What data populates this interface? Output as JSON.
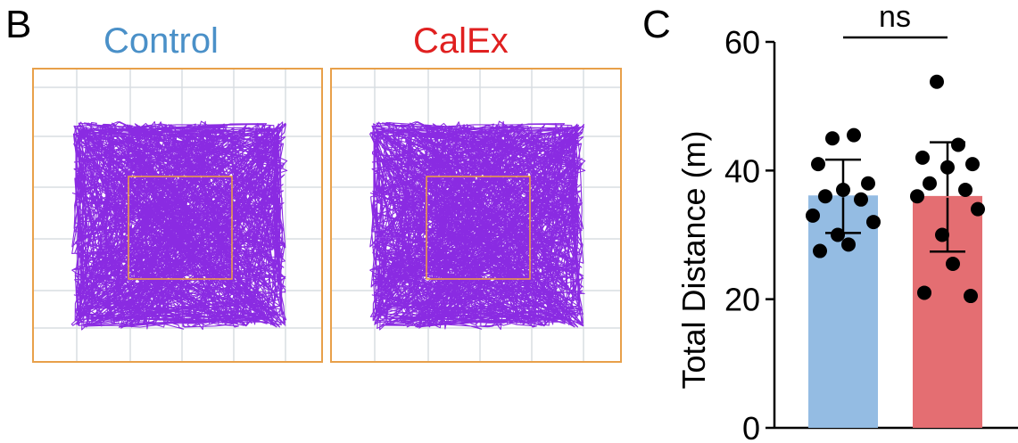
{
  "panel_b": {
    "letter": "B",
    "groups": [
      {
        "label": "Control",
        "color": "#4a90c8"
      },
      {
        "label": "CalEx",
        "color": "#e02020"
      }
    ],
    "arena_border_color": "#e8a04a",
    "center_zone_color": "#f0a040",
    "track_color": "#8a2be2",
    "grid_color": "#d8dde2"
  },
  "panel_c": {
    "letter": "C"
  },
  "chart_data": {
    "type": "bar",
    "ylabel": "Total Distance (m)",
    "xlabel": "",
    "ylim": [
      0,
      60
    ],
    "yticks": [
      0,
      20,
      40,
      60
    ],
    "categories": [
      "",
      ""
    ],
    "bar_colors": [
      "#94bce3",
      "#e46e72"
    ],
    "means": [
      36.0,
      35.9
    ],
    "sd": [
      5.7,
      8.5
    ],
    "points": [
      [
        45.0,
        45.5,
        41.0,
        38.0,
        37.0,
        36.0,
        35.5,
        33.0,
        32.0,
        30.0,
        28.5,
        27.5
      ],
      [
        53.8,
        44.0,
        42.0,
        41.0,
        40.5,
        38.0,
        37.0,
        36.0,
        34.0,
        30.0,
        25.5,
        21.0,
        20.5
      ]
    ],
    "significance": "ns",
    "legend": "none",
    "grid": false
  }
}
